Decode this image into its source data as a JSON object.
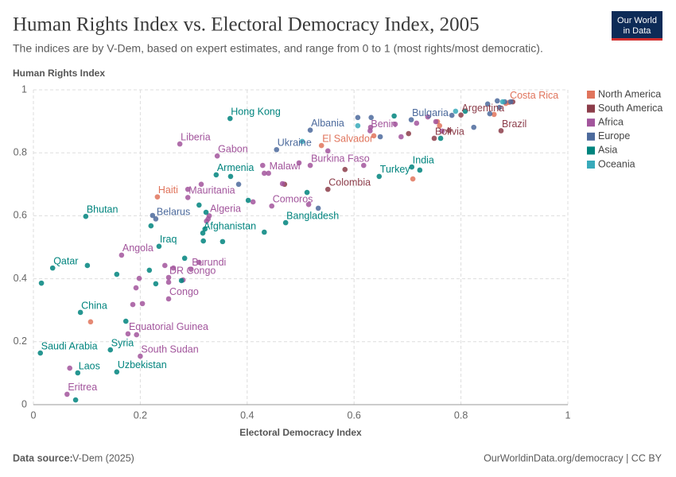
{
  "chart_data": {
    "type": "scatter",
    "title": "Human Rights Index vs. Electoral Democracy Index, 2005",
    "subtitle": "The indices are by V-Dem, based on expert estimates, and range from 0 to 1 (most rights/most democratic).",
    "y_label": "Human Rights Index",
    "x_label": "Electoral Democracy Index",
    "source_label": "Data source:",
    "source": "V-Dem (2025)",
    "footer": "OurWorldinData.org/democracy | CC BY",
    "logo": [
      "Our World",
      "in Data"
    ],
    "xlim": [
      0,
      1
    ],
    "ylim": [
      0,
      1
    ],
    "xticks": [
      0,
      0.2,
      0.4,
      0.6,
      0.8,
      1
    ],
    "yticks": [
      0,
      0.2,
      0.4,
      0.6,
      0.8,
      1
    ],
    "grid": true,
    "series": [
      {
        "name": "North America",
        "color": "#e0745c",
        "x": [
          0.89,
          0.539,
          0.232,
          0.107,
          0.71,
          0.756,
          0.76,
          0.637,
          0.862,
          0.884
        ],
        "values": [
          0.96,
          0.823,
          0.66,
          0.263,
          0.717,
          0.899,
          0.886,
          0.854,
          0.922,
          0.957
        ],
        "labels": [
          "Costa Rica",
          "El Salvador",
          "Haiti",
          null,
          null,
          null,
          null,
          null,
          null,
          null
        ]
      },
      {
        "name": "South America",
        "color": "#8c3d4a",
        "x": [
          0.8,
          0.875,
          0.75,
          0.551,
          0.47,
          0.583,
          0.702,
          0.778,
          0.897
        ],
        "values": [
          0.92,
          0.87,
          0.846,
          0.684,
          0.7,
          0.747,
          0.861,
          0.871,
          0.962
        ],
        "labels": [
          "Argentina",
          "Brazil",
          "Bolivia",
          "Colombia",
          null,
          null,
          null,
          null,
          null
        ]
      },
      {
        "name": "Africa",
        "color": "#a2559c",
        "x": [
          0.63,
          0.274,
          0.344,
          0.518,
          0.44,
          0.289,
          0.446,
          0.329,
          0.165,
          0.295,
          0.253,
          0.253,
          0.177,
          0.2,
          0.063,
          0.068,
          0.193,
          0.186,
          0.204,
          0.198,
          0.192,
          0.246,
          0.253,
          0.262,
          0.28,
          0.327,
          0.324,
          0.289,
          0.314,
          0.411,
          0.429,
          0.432,
          0.466,
          0.497,
          0.515,
          0.551,
          0.618,
          0.631,
          0.677,
          0.688,
          0.717,
          0.738,
          0.753,
          0.765,
          0.31
        ],
        "values": [
          0.87,
          0.828,
          0.79,
          0.76,
          0.735,
          0.658,
          0.631,
          0.6,
          0.475,
          0.43,
          0.404,
          0.336,
          0.225,
          0.154,
          0.033,
          0.116,
          0.222,
          0.318,
          0.321,
          0.401,
          0.371,
          0.442,
          0.389,
          0.434,
          0.396,
          0.59,
          0.583,
          0.684,
          0.7,
          0.644,
          0.76,
          0.735,
          0.702,
          0.768,
          0.636,
          0.806,
          0.76,
          0.881,
          0.891,
          0.851,
          0.894,
          0.914,
          0.899,
          0.869,
          0.452
        ],
        "labels": [
          "Benin",
          "Liberia",
          "Gabon",
          "Burkina Faso",
          "Malawi",
          "Mauritania",
          "Comoros",
          "Algeria",
          "Angola",
          "Burundi",
          "DR Congo",
          "Congo",
          "Equatorial Guinea",
          "South Sudan",
          "Eritrea",
          null,
          null,
          null,
          null,
          null,
          null,
          null,
          null,
          null,
          null,
          null,
          null,
          null,
          null,
          null,
          null,
          null,
          null,
          null,
          null,
          null,
          null,
          null,
          null,
          null,
          null,
          null,
          null,
          null,
          null
        ]
      },
      {
        "name": "Europe",
        "color": "#4c6a9c",
        "x": [
          0.707,
          0.518,
          0.455,
          0.229,
          0.223,
          0.384,
          0.533,
          0.607,
          0.632,
          0.649,
          0.783,
          0.824,
          0.85,
          0.868,
          0.872,
          0.882,
          0.893,
          0.854
        ],
        "values": [
          0.905,
          0.872,
          0.81,
          0.59,
          0.601,
          0.7,
          0.624,
          0.912,
          0.912,
          0.851,
          0.919,
          0.881,
          0.955,
          0.965,
          0.944,
          0.962,
          0.962,
          0.924
        ],
        "labels": [
          "Bulgaria",
          "Albania",
          "Ukraine",
          "Belarus",
          null,
          null,
          null,
          null,
          null,
          null,
          null,
          null,
          null,
          null,
          null,
          null,
          null,
          null
        ]
      },
      {
        "name": "Asia",
        "color": "#00847e",
        "x": [
          0.368,
          0.708,
          0.647,
          0.342,
          0.098,
          0.472,
          0.317,
          0.235,
          0.036,
          0.088,
          0.144,
          0.013,
          0.156,
          0.083,
          0.015,
          0.101,
          0.156,
          0.173,
          0.217,
          0.22,
          0.229,
          0.283,
          0.277,
          0.31,
          0.318,
          0.354,
          0.321,
          0.323,
          0.369,
          0.402,
          0.432,
          0.512,
          0.079,
          0.723,
          0.675,
          0.762,
          0.808
        ],
        "values": [
          0.909,
          0.755,
          0.725,
          0.73,
          0.598,
          0.578,
          0.545,
          0.503,
          0.434,
          0.293,
          0.174,
          0.164,
          0.104,
          0.101,
          0.386,
          0.442,
          0.414,
          0.265,
          0.427,
          0.568,
          0.384,
          0.465,
          0.394,
          0.634,
          0.52,
          0.518,
          0.558,
          0.611,
          0.725,
          0.649,
          0.548,
          0.674,
          0.015,
          0.745,
          0.917,
          0.846,
          0.932
        ],
        "labels": [
          "Hong Kong",
          "India",
          "Turkey",
          "Armenia",
          "Bhutan",
          "Bangladesh",
          "Afghanistan",
          "Iraq",
          "Qatar",
          "China",
          "Syria",
          "Saudi Arabia",
          "Uzbekistan",
          "Laos",
          null,
          null,
          null,
          null,
          null,
          null,
          null,
          null,
          null,
          null,
          null,
          null,
          null,
          null,
          null,
          null,
          null,
          null,
          null,
          null,
          null,
          null,
          null
        ]
      },
      {
        "name": "Oceania",
        "color": "#38aaba",
        "x": [
          0.503,
          0.607,
          0.79,
          0.878
        ],
        "values": [
          0.836,
          0.886,
          0.932,
          0.962
        ],
        "labels": [
          null,
          null,
          null,
          null
        ]
      }
    ]
  }
}
